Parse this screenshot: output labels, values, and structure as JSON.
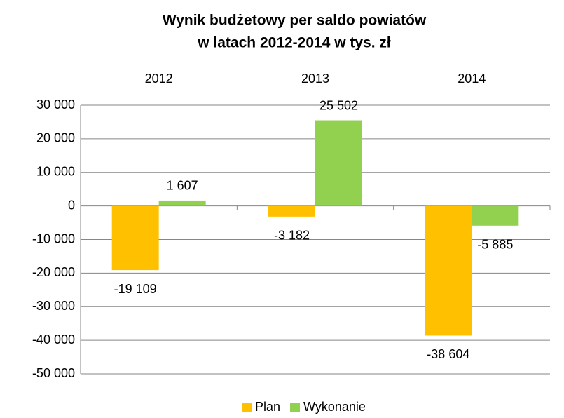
{
  "chart_data": {
    "type": "bar",
    "title": [
      "Wynik budżetowy per saldo powiatów",
      "w latach 2012-2014 w tys. zł"
    ],
    "categories": [
      "2012",
      "2013",
      "2014"
    ],
    "series": [
      {
        "name": "Plan",
        "color": "#ffc000",
        "values": [
          -19109,
          -3182,
          -38604
        ],
        "value_labels": [
          "-19 109",
          "-3 182",
          "-38 604"
        ]
      },
      {
        "name": "Wykonanie",
        "color": "#92d050",
        "values": [
          1607,
          25502,
          -5885
        ],
        "value_labels": [
          "1 607",
          "25 502",
          "-5 885"
        ]
      }
    ],
    "ylim": [
      -50000,
      30000
    ],
    "yticks": [
      {
        "value": -50000,
        "label": "-50 000"
      },
      {
        "value": -40000,
        "label": "-40 000"
      },
      {
        "value": -30000,
        "label": "-30 000"
      },
      {
        "value": -20000,
        "label": "-20 000"
      },
      {
        "value": -10000,
        "label": "-10 000"
      },
      0,
      {
        "value": 10000,
        "label": "10 000"
      },
      {
        "value": 20000,
        "label": "20 000"
      },
      {
        "value": 30000,
        "label": "30 000"
      }
    ],
    "grid": true,
    "legend": "bottom"
  }
}
